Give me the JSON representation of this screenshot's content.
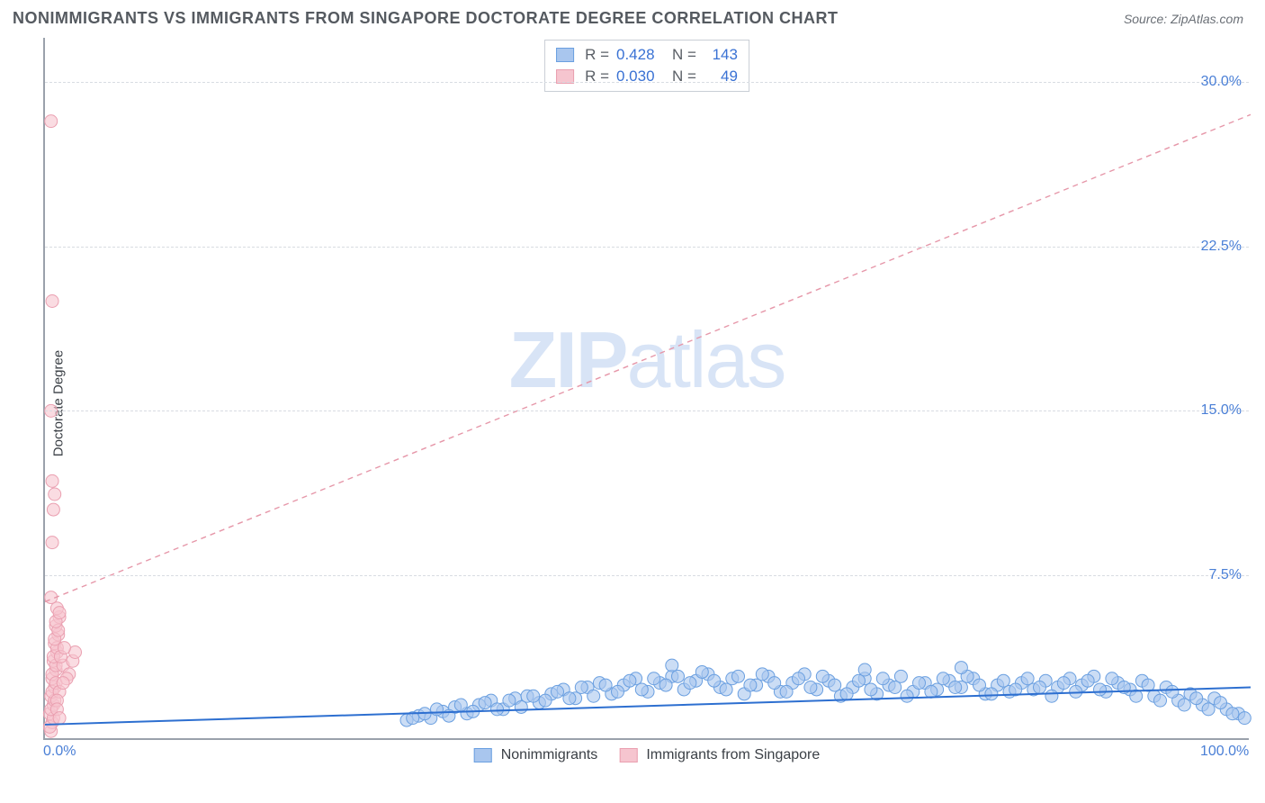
{
  "header": {
    "title": "NONIMMIGRANTS VS IMMIGRANTS FROM SINGAPORE DOCTORATE DEGREE CORRELATION CHART",
    "source": "Source: ZipAtlas.com"
  },
  "chart": {
    "ylabel": "Doctorate Degree",
    "watermark_bold": "ZIP",
    "watermark_light": "atlas",
    "xlim": [
      0,
      100
    ],
    "ylim": [
      0,
      32
    ],
    "y_gridlines": [
      7.5,
      15.0,
      22.5,
      30.0
    ],
    "y_tick_labels": [
      "7.5%",
      "15.0%",
      "22.5%",
      "30.0%"
    ],
    "x_ticks": [
      0,
      100
    ],
    "x_tick_labels": [
      "0.0%",
      "100.0%"
    ],
    "grid_color": "#d8dce2",
    "axis_color": "#9aa1ab",
    "tick_color": "#4a7fd6",
    "series": {
      "nonimmigrants": {
        "label": "Nonimmigrants",
        "fill": "#a9c6ee",
        "stroke": "#6a9fe0",
        "line_color": "#2d6fd0",
        "marker_r": 7,
        "marker_opacity": 0.6,
        "trend": {
          "x1": 0,
          "y1": 0.7,
          "x2": 100,
          "y2": 2.4,
          "dash": "none",
          "width": 2
        },
        "points": [
          [
            30,
            0.9
          ],
          [
            31,
            1.1
          ],
          [
            32,
            1.0
          ],
          [
            33,
            1.3
          ],
          [
            34,
            1.5
          ],
          [
            35,
            1.2
          ],
          [
            36,
            1.6
          ],
          [
            37,
            1.8
          ],
          [
            38,
            1.4
          ],
          [
            39,
            1.9
          ],
          [
            40,
            2.0
          ],
          [
            41,
            1.7
          ],
          [
            42,
            2.1
          ],
          [
            43,
            2.3
          ],
          [
            44,
            1.9
          ],
          [
            45,
            2.4
          ],
          [
            46,
            2.6
          ],
          [
            47,
            2.1
          ],
          [
            48,
            2.5
          ],
          [
            49,
            2.8
          ],
          [
            50,
            2.2
          ],
          [
            51,
            2.6
          ],
          [
            52,
            2.9
          ],
          [
            53,
            2.3
          ],
          [
            54,
            2.7
          ],
          [
            55,
            3.0
          ],
          [
            56,
            2.4
          ],
          [
            57,
            2.8
          ],
          [
            58,
            2.1
          ],
          [
            59,
            2.5
          ],
          [
            60,
            2.9
          ],
          [
            61,
            2.2
          ],
          [
            62,
            2.6
          ],
          [
            63,
            3.0
          ],
          [
            64,
            2.3
          ],
          [
            65,
            2.7
          ],
          [
            66,
            2.0
          ],
          [
            67,
            2.4
          ],
          [
            68,
            2.8
          ],
          [
            69,
            2.1
          ],
          [
            70,
            2.5
          ],
          [
            71,
            2.9
          ],
          [
            72,
            2.2
          ],
          [
            73,
            2.6
          ],
          [
            74,
            2.3
          ],
          [
            75,
            2.7
          ],
          [
            76,
            2.4
          ],
          [
            77,
            2.8
          ],
          [
            78,
            2.1
          ],
          [
            79,
            2.5
          ],
          [
            80,
            2.2
          ],
          [
            81,
            2.6
          ],
          [
            82,
            2.3
          ],
          [
            83,
            2.7
          ],
          [
            84,
            2.4
          ],
          [
            85,
            2.8
          ],
          [
            86,
            2.5
          ],
          [
            87,
            2.9
          ],
          [
            88,
            2.2
          ],
          [
            89,
            2.6
          ],
          [
            90,
            2.3
          ],
          [
            91,
            2.7
          ],
          [
            92,
            2.0
          ],
          [
            93,
            2.4
          ],
          [
            94,
            1.8
          ],
          [
            95,
            2.1
          ],
          [
            96,
            1.6
          ],
          [
            97,
            1.9
          ],
          [
            98,
            1.4
          ],
          [
            99,
            1.2
          ],
          [
            30.5,
            1.0
          ],
          [
            31.5,
            1.2
          ],
          [
            32.5,
            1.4
          ],
          [
            33.5,
            1.1
          ],
          [
            34.5,
            1.6
          ],
          [
            35.5,
            1.3
          ],
          [
            36.5,
            1.7
          ],
          [
            37.5,
            1.4
          ],
          [
            38.5,
            1.8
          ],
          [
            39.5,
            1.5
          ],
          [
            40.5,
            2.0
          ],
          [
            41.5,
            1.8
          ],
          [
            42.5,
            2.2
          ],
          [
            43.5,
            1.9
          ],
          [
            44.5,
            2.4
          ],
          [
            45.5,
            2.0
          ],
          [
            46.5,
            2.5
          ],
          [
            47.5,
            2.2
          ],
          [
            48.5,
            2.7
          ],
          [
            49.5,
            2.3
          ],
          [
            50.5,
            2.8
          ],
          [
            51.5,
            2.5
          ],
          [
            52.5,
            2.9
          ],
          [
            53.5,
            2.6
          ],
          [
            54.5,
            3.1
          ],
          [
            55.5,
            2.7
          ],
          [
            56.5,
            2.3
          ],
          [
            57.5,
            2.9
          ],
          [
            58.5,
            2.5
          ],
          [
            59.5,
            3.0
          ],
          [
            60.5,
            2.6
          ],
          [
            61.5,
            2.2
          ],
          [
            62.5,
            2.8
          ],
          [
            63.5,
            2.4
          ],
          [
            64.5,
            2.9
          ],
          [
            65.5,
            2.5
          ],
          [
            66.5,
            2.1
          ],
          [
            67.5,
            2.7
          ],
          [
            68.5,
            2.3
          ],
          [
            69.5,
            2.8
          ],
          [
            70.5,
            2.4
          ],
          [
            71.5,
            2.0
          ],
          [
            72.5,
            2.6
          ],
          [
            73.5,
            2.2
          ],
          [
            74.5,
            2.8
          ],
          [
            75.5,
            2.4
          ],
          [
            76.5,
            2.9
          ],
          [
            77.5,
            2.5
          ],
          [
            78.5,
            2.1
          ],
          [
            79.5,
            2.7
          ],
          [
            80.5,
            2.3
          ],
          [
            81.5,
            2.8
          ],
          [
            82.5,
            2.4
          ],
          [
            83.5,
            2.0
          ],
          [
            84.5,
            2.6
          ],
          [
            85.5,
            2.2
          ],
          [
            86.5,
            2.7
          ],
          [
            87.5,
            2.3
          ],
          [
            88.5,
            2.8
          ],
          [
            89.5,
            2.4
          ],
          [
            90.5,
            2.0
          ],
          [
            91.5,
            2.5
          ],
          [
            92.5,
            1.8
          ],
          [
            93.5,
            2.2
          ],
          [
            94.5,
            1.6
          ],
          [
            95.5,
            1.9
          ],
          [
            96.5,
            1.4
          ],
          [
            97.5,
            1.7
          ],
          [
            98.5,
            1.2
          ],
          [
            99.5,
            1.0
          ],
          [
            52,
            3.4
          ],
          [
            68,
            3.2
          ],
          [
            76,
            3.3
          ]
        ]
      },
      "immigrants": {
        "label": "Immigrants from Singapore",
        "fill": "#f6c5cf",
        "stroke": "#ea9fb0",
        "line_color": "#e697a9",
        "marker_r": 7,
        "marker_opacity": 0.6,
        "trend": {
          "x1": 0,
          "y1": 6.3,
          "x2": 100,
          "y2": 28.5,
          "dash": "6,5",
          "width": 1.4
        },
        "points": [
          [
            0.5,
            0.4
          ],
          [
            0.6,
            0.8
          ],
          [
            0.4,
            1.2
          ],
          [
            0.7,
            1.6
          ],
          [
            0.5,
            2.0
          ],
          [
            0.8,
            2.4
          ],
          [
            0.6,
            2.8
          ],
          [
            0.9,
            3.2
          ],
          [
            0.7,
            3.6
          ],
          [
            1.0,
            4.0
          ],
          [
            0.8,
            4.4
          ],
          [
            1.1,
            4.8
          ],
          [
            0.9,
            5.2
          ],
          [
            1.2,
            5.6
          ],
          [
            1.0,
            6.0
          ],
          [
            0.6,
            3.0
          ],
          [
            0.9,
            3.4
          ],
          [
            0.7,
            3.8
          ],
          [
            1.0,
            4.2
          ],
          [
            0.8,
            4.6
          ],
          [
            1.1,
            5.0
          ],
          [
            0.9,
            5.4
          ],
          [
            1.2,
            5.8
          ],
          [
            0.4,
            0.6
          ],
          [
            0.7,
            1.0
          ],
          [
            0.5,
            1.4
          ],
          [
            0.8,
            1.8
          ],
          [
            0.6,
            2.2
          ],
          [
            0.9,
            2.6
          ],
          [
            1.5,
            3.4
          ],
          [
            2.0,
            3.0
          ],
          [
            2.3,
            3.6
          ],
          [
            1.8,
            2.8
          ],
          [
            2.5,
            4.0
          ],
          [
            1.2,
            2.2
          ],
          [
            1.5,
            2.6
          ],
          [
            1.0,
            1.8
          ],
          [
            1.3,
            3.8
          ],
          [
            1.6,
            4.2
          ],
          [
            0.5,
            6.5
          ],
          [
            0.6,
            9.0
          ],
          [
            0.7,
            10.5
          ],
          [
            0.8,
            11.2
          ],
          [
            0.6,
            11.8
          ],
          [
            0.5,
            15.0
          ],
          [
            0.6,
            20.0
          ],
          [
            0.5,
            28.2
          ],
          [
            1.0,
            1.4
          ],
          [
            1.2,
            1.0
          ]
        ]
      }
    },
    "stats_box": {
      "rows": [
        {
          "swatch_fill": "#a9c6ee",
          "swatch_stroke": "#6a9fe0",
          "r_label": "R =",
          "r_val": "0.428",
          "n_label": "N =",
          "n_val": "143"
        },
        {
          "swatch_fill": "#f6c5cf",
          "swatch_stroke": "#ea9fb0",
          "r_label": "R =",
          "r_val": "0.030",
          "n_label": "N =",
          "n_val": "49"
        }
      ]
    },
    "bottom_legend": [
      {
        "fill": "#a9c6ee",
        "stroke": "#6a9fe0",
        "label": "Nonimmigrants"
      },
      {
        "fill": "#f6c5cf",
        "stroke": "#ea9fb0",
        "label": "Immigrants from Singapore"
      }
    ]
  }
}
